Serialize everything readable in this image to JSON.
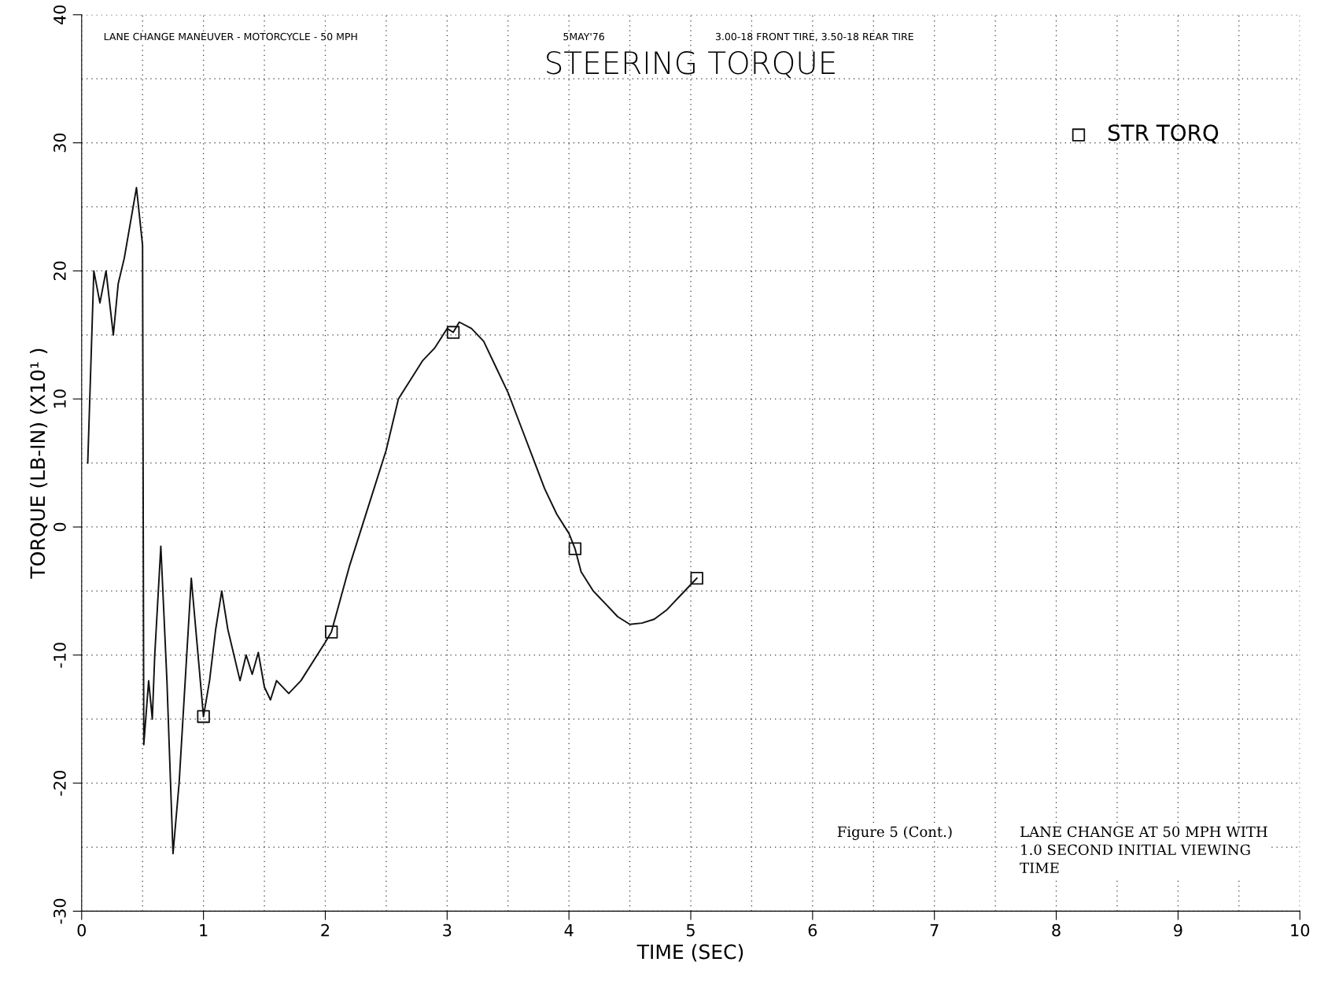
{
  "chart_data": {
    "type": "line",
    "title": "STEERING TORQUE",
    "xlabel": "TIME (SEC)",
    "ylabel": "TORQUE (LB-IN) (X10¹ )",
    "annotations": [
      "LANE CHANGE MANEUVER - MOTORCYCLE - 50 MPH",
      "5MAY'76",
      "3.00-18 FRONT TIRE, 3.50-18 REAR TIRE",
      "Figure 5 (Cont.)",
      "LANE CHANGE AT 50 MPH WITH\n1.0 SECOND INITIAL VIEWING\nTIME"
    ],
    "series": [
      {
        "color": "#111111",
        "marker": "none",
        "x": [
          0.05,
          0.1,
          0.15,
          0.2,
          0.26,
          0.3,
          0.35,
          0.45,
          0.5,
          0.51,
          0.55,
          0.58,
          0.6,
          0.65,
          0.7,
          0.75,
          0.8,
          0.9,
          1.0,
          1.05,
          1.1,
          1.15,
          1.2,
          1.3,
          1.35,
          1.4,
          1.45,
          1.5,
          1.55,
          1.6,
          1.7,
          1.8,
          2.0,
          2.05,
          2.2,
          2.4,
          2.5,
          2.6,
          2.7,
          2.8,
          2.9,
          3.0,
          3.05,
          3.1,
          3.2,
          3.3,
          3.4,
          3.5,
          3.6,
          3.7,
          3.8,
          3.9,
          4.0,
          4.05,
          4.1,
          4.2,
          4.3,
          4.4,
          4.5,
          4.6,
          4.7,
          4.8,
          4.9,
          5.0,
          5.05
        ],
        "values": [
          5,
          20,
          17.5,
          20,
          15,
          19,
          21,
          26.5,
          22,
          -17,
          -12,
          -15,
          -10,
          -1.5,
          -12,
          -25.5,
          -20,
          -4,
          -14.8,
          -12,
          -8,
          -5,
          -8,
          -12,
          -10,
          -11.5,
          -9.8,
          -12.5,
          -13.5,
          -12,
          -13,
          -12,
          -9,
          -8.2,
          -3,
          3,
          6,
          10,
          11.5,
          13,
          14,
          15.5,
          15.2,
          16,
          15.5,
          14.5,
          12.5,
          10.5,
          8,
          5.5,
          3,
          1,
          -0.5,
          -1.7,
          -3.5,
          -5,
          -6,
          -7,
          -7.6,
          -7.5,
          -7.2,
          -6.5,
          -5.5,
          -4.5,
          -4
        ]
      },
      {
        "type": "scatter",
        "name": "STR TORQ",
        "color": "#111111",
        "marker": "square",
        "x": [
          1.0,
          2.05,
          3.05,
          4.05,
          5.05
        ],
        "values": [
          -14.8,
          -8.2,
          15.2,
          -1.7,
          -4
        ]
      }
    ],
    "xlim": [
      0,
      10
    ],
    "xticks": [
      0,
      1,
      2,
      3,
      4,
      5,
      6,
      7,
      8,
      9,
      10
    ],
    "ylim": [
      -30,
      40
    ],
    "yticks": [
      -30,
      -20,
      -10,
      0,
      10,
      20,
      30,
      40
    ],
    "grid": true,
    "legend": "top right"
  }
}
